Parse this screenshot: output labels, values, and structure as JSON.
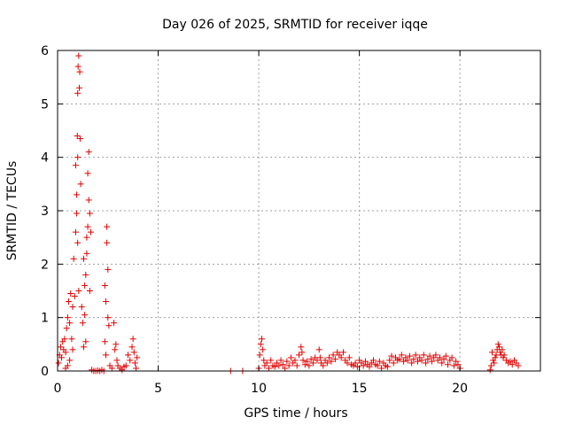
{
  "chart_data": {
    "type": "scatter",
    "title": "Day 026 of 2025, SRMTID for receiver iqqe",
    "xlabel": "GPS time / hours",
    "ylabel": "SRMTID / TECUs",
    "xlim": [
      0,
      24
    ],
    "ylim": [
      0,
      6
    ],
    "xticks": [
      "0",
      "5",
      "10",
      "15",
      "20"
    ],
    "xtick_values": [
      0,
      5,
      10,
      15,
      20
    ],
    "yticks": [
      "0",
      "1",
      "2",
      "3",
      "4",
      "5",
      "6"
    ],
    "ytick_values": [
      0,
      1,
      2,
      3,
      4,
      5,
      6
    ],
    "grid": true,
    "marker": "plus",
    "color": "#e00000",
    "series": [
      {
        "name": "SRMTID",
        "points": [
          [
            0.05,
            0.15
          ],
          [
            0.1,
            0.3
          ],
          [
            0.15,
            0.45
          ],
          [
            0.2,
            0.25
          ],
          [
            0.25,
            0.55
          ],
          [
            0.3,
            0.4
          ],
          [
            0.35,
            0.6
          ],
          [
            0.4,
            0.35
          ],
          [
            0.45,
            0.8
          ],
          [
            0.5,
            1.0
          ],
          [
            0.55,
            1.3
          ],
          [
            0.6,
            0.9
          ],
          [
            0.65,
            1.45
          ],
          [
            0.7,
            0.6
          ],
          [
            0.75,
            1.2
          ],
          [
            0.8,
            2.1
          ],
          [
            0.85,
            1.4
          ],
          [
            0.9,
            2.6
          ],
          [
            0.95,
            3.3
          ],
          [
            1.0,
            4.0
          ],
          [
            0.98,
            4.4
          ],
          [
            1.0,
            5.2
          ],
          [
            1.02,
            5.7
          ],
          [
            1.05,
            5.9
          ],
          [
            1.08,
            5.3
          ],
          [
            1.1,
            5.6
          ],
          [
            1.12,
            4.35
          ],
          [
            1.15,
            3.5
          ],
          [
            0.9,
            3.85
          ],
          [
            0.95,
            2.95
          ],
          [
            1.0,
            2.4
          ],
          [
            1.05,
            1.5
          ],
          [
            0.75,
            0.4
          ],
          [
            0.6,
            0.2
          ],
          [
            0.5,
            0.1
          ],
          [
            0.4,
            0.05
          ],
          [
            1.2,
            1.2
          ],
          [
            1.25,
            0.9
          ],
          [
            1.3,
            2.1
          ],
          [
            1.35,
            1.6
          ],
          [
            1.4,
            0.55
          ],
          [
            1.45,
            2.5
          ],
          [
            1.5,
            2.7
          ],
          [
            1.55,
            3.2
          ],
          [
            1.6,
            1.5
          ],
          [
            1.5,
            3.7
          ],
          [
            1.55,
            4.1
          ],
          [
            1.45,
            2.2
          ],
          [
            1.4,
            1.8
          ],
          [
            1.35,
            1.05
          ],
          [
            1.3,
            0.45
          ],
          [
            1.6,
            2.95
          ],
          [
            1.65,
            2.6
          ],
          [
            1.7,
            0.02
          ],
          [
            1.8,
            0.0
          ],
          [
            1.9,
            0.0
          ],
          [
            2.0,
            0.01
          ],
          [
            2.1,
            0.0
          ],
          [
            2.2,
            0.02
          ],
          [
            2.3,
            0.0
          ],
          [
            2.35,
            1.6
          ],
          [
            2.4,
            1.3
          ],
          [
            2.45,
            2.7
          ],
          [
            2.45,
            2.4
          ],
          [
            2.5,
            1.9
          ],
          [
            2.5,
            1.0
          ],
          [
            2.55,
            0.85
          ],
          [
            2.35,
            0.55
          ],
          [
            2.4,
            0.3
          ],
          [
            2.6,
            0.1
          ],
          [
            2.7,
            0.05
          ],
          [
            2.8,
            0.9
          ],
          [
            2.85,
            0.4
          ],
          [
            2.9,
            0.5
          ],
          [
            2.95,
            0.2
          ],
          [
            3.0,
            0.1
          ],
          [
            3.1,
            0.05
          ],
          [
            3.2,
            0.02
          ],
          [
            3.3,
            0.08
          ],
          [
            3.4,
            0.1
          ],
          [
            3.5,
            0.3
          ],
          [
            3.6,
            0.2
          ],
          [
            3.7,
            0.45
          ],
          [
            3.75,
            0.6
          ],
          [
            3.8,
            0.35
          ],
          [
            3.85,
            0.15
          ],
          [
            3.9,
            0.05
          ],
          [
            3.95,
            0.25
          ],
          [
            8.6,
            0.0
          ],
          [
            9.2,
            0.0
          ],
          [
            10.0,
            0.05
          ],
          [
            10.05,
            0.3
          ],
          [
            10.1,
            0.5
          ],
          [
            10.15,
            0.6
          ],
          [
            10.2,
            0.4
          ],
          [
            10.25,
            0.2
          ],
          [
            10.3,
            0.1
          ],
          [
            10.4,
            0.15
          ],
          [
            10.5,
            0.05
          ],
          [
            10.6,
            0.2
          ],
          [
            10.7,
            0.1
          ],
          [
            10.8,
            0.08
          ],
          [
            10.9,
            0.15
          ],
          [
            11.0,
            0.1
          ],
          [
            11.1,
            0.2
          ],
          [
            11.2,
            0.12
          ],
          [
            11.3,
            0.05
          ],
          [
            11.4,
            0.18
          ],
          [
            11.5,
            0.1
          ],
          [
            11.6,
            0.25
          ],
          [
            11.7,
            0.15
          ],
          [
            11.8,
            0.2
          ],
          [
            11.9,
            0.1
          ],
          [
            12.0,
            0.3
          ],
          [
            12.1,
            0.45
          ],
          [
            12.15,
            0.35
          ],
          [
            12.2,
            0.2
          ],
          [
            12.3,
            0.12
          ],
          [
            12.4,
            0.18
          ],
          [
            12.5,
            0.1
          ],
          [
            12.6,
            0.22
          ],
          [
            12.7,
            0.15
          ],
          [
            12.8,
            0.25
          ],
          [
            12.9,
            0.2
          ],
          [
            13.0,
            0.4
          ],
          [
            13.05,
            0.25
          ],
          [
            13.1,
            0.15
          ],
          [
            13.2,
            0.1
          ],
          [
            13.3,
            0.2
          ],
          [
            13.4,
            0.15
          ],
          [
            13.5,
            0.25
          ],
          [
            13.6,
            0.18
          ],
          [
            13.7,
            0.3
          ],
          [
            13.8,
            0.22
          ],
          [
            13.9,
            0.35
          ],
          [
            14.0,
            0.3
          ],
          [
            14.1,
            0.25
          ],
          [
            14.2,
            0.35
          ],
          [
            14.3,
            0.2
          ],
          [
            14.4,
            0.15
          ],
          [
            14.5,
            0.25
          ],
          [
            14.6,
            0.12
          ],
          [
            14.7,
            0.1
          ],
          [
            14.8,
            0.15
          ],
          [
            14.9,
            0.08
          ],
          [
            15.0,
            0.2
          ],
          [
            15.1,
            0.15
          ],
          [
            15.2,
            0.1
          ],
          [
            15.3,
            0.18
          ],
          [
            15.4,
            0.12
          ],
          [
            15.5,
            0.08
          ],
          [
            15.6,
            0.15
          ],
          [
            15.7,
            0.2
          ],
          [
            15.8,
            0.12
          ],
          [
            15.9,
            0.1
          ],
          [
            16.0,
            0.18
          ],
          [
            16.1,
            0.05
          ],
          [
            16.2,
            0.15
          ],
          [
            16.3,
            0.1
          ],
          [
            16.4,
            0.08
          ],
          [
            16.5,
            0.2
          ],
          [
            16.6,
            0.28
          ],
          [
            16.7,
            0.15
          ],
          [
            16.8,
            0.25
          ],
          [
            16.9,
            0.2
          ],
          [
            17.0,
            0.22
          ],
          [
            17.1,
            0.3
          ],
          [
            17.2,
            0.18
          ],
          [
            17.3,
            0.25
          ],
          [
            17.4,
            0.2
          ],
          [
            17.5,
            0.28
          ],
          [
            17.6,
            0.15
          ],
          [
            17.7,
            0.22
          ],
          [
            17.8,
            0.3
          ],
          [
            17.9,
            0.18
          ],
          [
            18.0,
            0.25
          ],
          [
            18.1,
            0.2
          ],
          [
            18.2,
            0.3
          ],
          [
            18.3,
            0.15
          ],
          [
            18.4,
            0.22
          ],
          [
            18.5,
            0.28
          ],
          [
            18.6,
            0.18
          ],
          [
            18.7,
            0.25
          ],
          [
            18.8,
            0.3
          ],
          [
            18.9,
            0.2
          ],
          [
            19.0,
            0.25
          ],
          [
            19.1,
            0.15
          ],
          [
            19.2,
            0.22
          ],
          [
            19.3,
            0.28
          ],
          [
            19.4,
            0.12
          ],
          [
            19.5,
            0.2
          ],
          [
            19.6,
            0.25
          ],
          [
            19.7,
            0.1
          ],
          [
            19.8,
            0.18
          ],
          [
            19.9,
            0.12
          ],
          [
            20.0,
            0.05
          ],
          [
            21.5,
            0.02
          ],
          [
            21.55,
            0.1
          ],
          [
            21.6,
            0.35
          ],
          [
            21.65,
            0.2
          ],
          [
            21.7,
            0.15
          ],
          [
            21.75,
            0.25
          ],
          [
            21.8,
            0.3
          ],
          [
            21.85,
            0.4
          ],
          [
            21.9,
            0.5
          ],
          [
            21.95,
            0.45
          ],
          [
            22.0,
            0.35
          ],
          [
            22.05,
            0.3
          ],
          [
            22.1,
            0.4
          ],
          [
            22.15,
            0.25
          ],
          [
            22.2,
            0.3
          ],
          [
            22.3,
            0.2
          ],
          [
            22.4,
            0.15
          ],
          [
            22.5,
            0.18
          ],
          [
            22.6,
            0.12
          ],
          [
            22.7,
            0.2
          ],
          [
            22.8,
            0.15
          ],
          [
            22.9,
            0.1
          ]
        ]
      }
    ]
  }
}
